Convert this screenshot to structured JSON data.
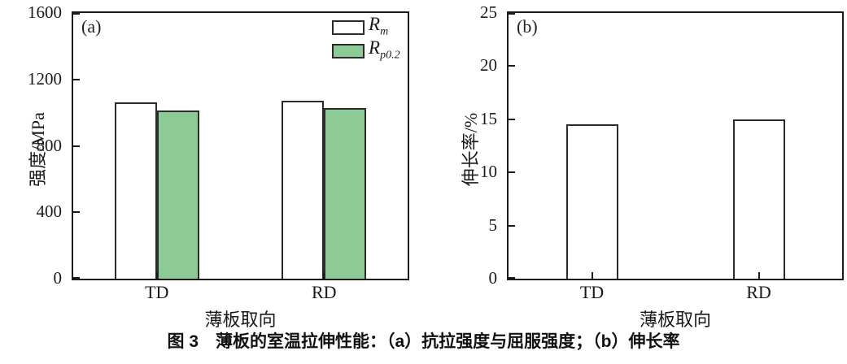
{
  "figure": {
    "caption": "图 3　薄板的室温拉伸性能：（a）抗拉强度与屈服强度；（b）伸长率"
  },
  "chart_data": [
    {
      "type": "bar",
      "panel_label": "(a)",
      "title": "",
      "categories": [
        "TD",
        "RD"
      ],
      "series": [
        {
          "name": "Rm",
          "label_main": "R",
          "label_sub": "m",
          "color": "#ffffff",
          "values": [
            1060,
            1070
          ]
        },
        {
          "name": "Rp0.2",
          "label_main": "R",
          "label_sub": "p0.2",
          "color": "#8dcb96",
          "values": [
            1015,
            1030
          ]
        }
      ],
      "xlabel": "薄板取向",
      "ylabel": "强度/MPa",
      "ylim": [
        0,
        1600
      ],
      "ytick_step": 400,
      "grid": false,
      "legend_position": "top-right"
    },
    {
      "type": "bar",
      "panel_label": "(b)",
      "title": "",
      "categories": [
        "TD",
        "RD"
      ],
      "series": [
        {
          "name": "伸长率",
          "color": "#ffffff",
          "values": [
            14.5,
            15.0
          ]
        }
      ],
      "xlabel": "薄板取向",
      "ylabel": "伸长率/%",
      "ylim": [
        0,
        25
      ],
      "ytick_step": 5,
      "grid": false,
      "legend_position": "none"
    }
  ],
  "colors": {
    "axis": "#1a1a1a",
    "bar_border": "#2b2b2b",
    "green_fill": "#8dcb96",
    "white_fill": "#ffffff"
  }
}
